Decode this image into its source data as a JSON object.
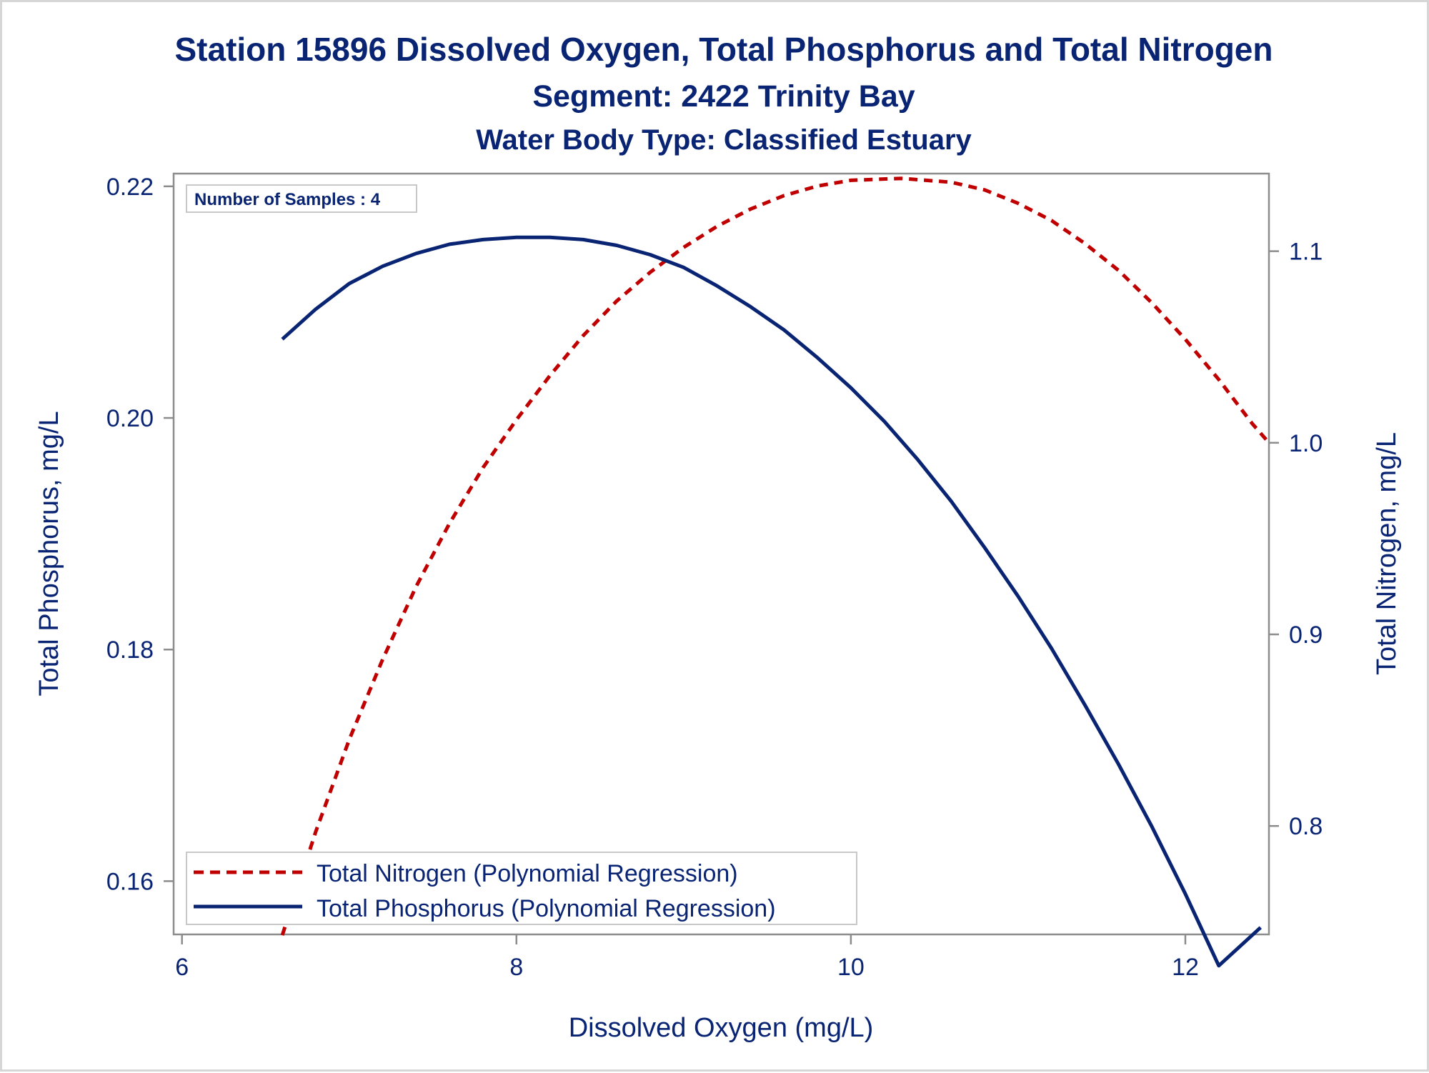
{
  "titles": {
    "line1": "Station 15896  Dissolved Oxygen, Total Phosphorus and Total Nitrogen",
    "line2": "Segment: 2422  Trinity Bay",
    "line3": "Water Body Type: Classified Estuary"
  },
  "inset_label": "Number of Samples : 4",
  "colors": {
    "text": "#0a2474",
    "phosphorus": "#0a2474",
    "nitrogen": "#c00000",
    "frame": "#8c8c8c"
  },
  "chart_data": {
    "type": "line",
    "xlabel": "Dissolved Oxygen (mg/L)",
    "ylabel": "Total Phosphorus, mg/L",
    "y2label": "Total Nitrogen, mg/L",
    "xlim": [
      5.95,
      12.5
    ],
    "ylim": [
      0.1554,
      0.2211
    ],
    "y2lim": [
      0.7434,
      1.1405
    ],
    "xticks": [
      6,
      8,
      10,
      12
    ],
    "yticks": [
      0.16,
      0.18,
      0.2,
      0.22
    ],
    "y2ticks": [
      0.8,
      0.9,
      1.0,
      1.1
    ],
    "xtick_labels": [
      "6",
      "8",
      "10",
      "12"
    ],
    "ytick_labels": [
      "0.16",
      "0.18",
      "0.20",
      "0.22"
    ],
    "y2tick_labels": [
      "0.8",
      "0.9",
      "1.0",
      "1.1"
    ],
    "legend_position": "bottom-left inside",
    "series": [
      {
        "name": "Total Nitrogen (Polynomial Regression)",
        "axis": "right",
        "style": "dashed",
        "color": "#c00000",
        "x": [
          6.6,
          6.8,
          7.0,
          7.2,
          7.4,
          7.6,
          7.8,
          8.0,
          8.2,
          8.4,
          8.6,
          8.8,
          9.0,
          9.2,
          9.4,
          9.6,
          9.8,
          10.0,
          10.3,
          10.6,
          10.8,
          11.0,
          11.2,
          11.4,
          11.6,
          11.8,
          12.0,
          12.2,
          12.4,
          12.5
        ],
        "y": [
          0.743,
          0.797,
          0.845,
          0.887,
          0.925,
          0.958,
          0.987,
          1.012,
          1.035,
          1.056,
          1.074,
          1.089,
          1.102,
          1.113,
          1.122,
          1.129,
          1.134,
          1.137,
          1.138,
          1.136,
          1.132,
          1.125,
          1.116,
          1.104,
          1.09,
          1.073,
          1.054,
          1.033,
          1.01,
          1.0
        ]
      },
      {
        "name": "Total Phosphorus (Polynomial Regression)",
        "axis": "left",
        "style": "solid",
        "color": "#0a2474",
        "x": [
          6.6,
          6.8,
          7.0,
          7.2,
          7.4,
          7.6,
          7.8,
          8.0,
          8.2,
          8.4,
          8.6,
          8.8,
          9.0,
          9.2,
          9.4,
          9.6,
          9.8,
          10.0,
          10.2,
          10.4,
          10.6,
          10.8,
          11.0,
          11.2,
          11.4,
          11.6,
          11.8,
          12.0,
          12.2,
          12.45
        ],
        "y": [
          0.2068,
          0.2094,
          0.2116,
          0.2131,
          0.2142,
          0.215,
          0.2154,
          0.2156,
          0.2156,
          0.2154,
          0.2149,
          0.2141,
          0.213,
          0.2114,
          0.2096,
          0.2076,
          0.2052,
          0.2026,
          0.1997,
          0.1964,
          0.1928,
          0.1888,
          0.1846,
          0.1801,
          0.1752,
          0.1701,
          0.1647,
          0.1589,
          0.1527,
          0.156
        ]
      }
    ]
  }
}
